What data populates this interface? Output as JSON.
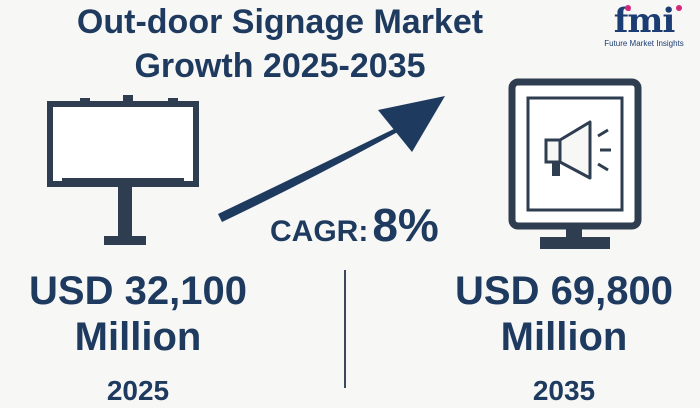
{
  "header": {
    "title_line1": "Out-door Signage Market",
    "title_line2": "Growth 2025-2035"
  },
  "logo": {
    "mark": "fmi",
    "tagline": "Future Market Insights"
  },
  "growth": {
    "label": "CAGR:",
    "value": "8%"
  },
  "start": {
    "amount": "USD 32,100",
    "unit": "Million",
    "year": "2025"
  },
  "end": {
    "amount": "USD 69,800",
    "unit": "Million",
    "year": "2035"
  },
  "icons": {
    "left": "billboard-icon",
    "arrow": "growth-arrow-icon",
    "right": "digital-sign-megaphone-icon"
  },
  "colors": {
    "navy": "#1e3a5f",
    "slate": "#3a4a5e",
    "logo_pink": "#d6267a"
  }
}
